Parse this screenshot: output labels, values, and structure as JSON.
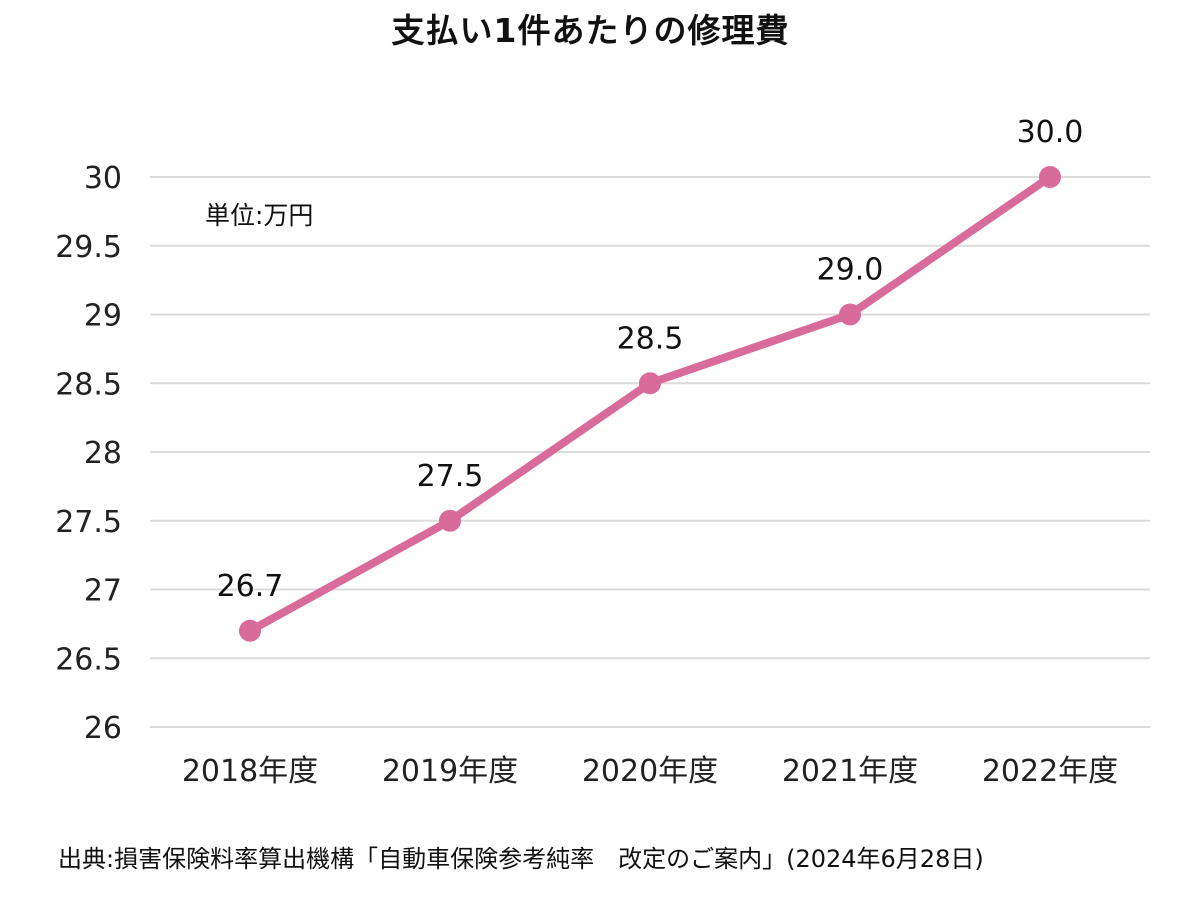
{
  "chart_data": {
    "type": "line",
    "title": "支払い1件あたりの修理費",
    "unit_note": "単位:万円",
    "categories": [
      "2018年度",
      "2019年度",
      "2020年度",
      "2021年度",
      "2022年度"
    ],
    "series": [
      {
        "values": [
          26.7,
          27.5,
          28.5,
          29.0,
          30.0
        ]
      }
    ],
    "data_labels": [
      "26.7",
      "27.5",
      "28.5",
      "29.0",
      "30.0"
    ],
    "yticks": [
      "26",
      "26.5",
      "27",
      "27.5",
      "28",
      "28.5",
      "29",
      "29.5",
      "30"
    ],
    "ylim": [
      26,
      30
    ],
    "grid": true,
    "colors": {
      "line": "#d96b9a",
      "grid": "#dcdcdc"
    },
    "source": "出典:損害保険料率算出機構「自動車保険参考純率　改定のご案内」(2024年6月28日)"
  }
}
